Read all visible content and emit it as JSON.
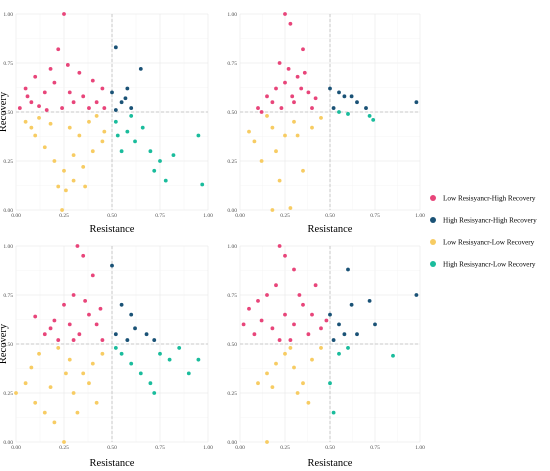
{
  "figure": {
    "legend": {
      "placement": "right",
      "entries": [
        {
          "key": "LH",
          "label": "Low Resisyancr-High Recovery",
          "color": "#e8457a"
        },
        {
          "key": "HH",
          "label": "High Resisyancr-High Recovery",
          "color": "#1a5276"
        },
        {
          "key": "LL",
          "label": "Low Resisyancr-Low Recovery",
          "color": "#f7cc63"
        },
        {
          "key": "HL",
          "label": "High Resisyancr-Low Recovery",
          "color": "#1abc9c"
        }
      ]
    }
  },
  "chart_data": [
    {
      "type": "scatter",
      "panel": "top-left",
      "xlabel": "Resistance",
      "ylabel": "Recovery",
      "xlim": [
        0,
        1
      ],
      "ylim": [
        0,
        1
      ],
      "x_ticks": [
        "0.00",
        "0.25",
        "0.50",
        "0.75",
        "1.00"
      ],
      "y_ticks": [
        "0.00",
        "0.25",
        "0.50",
        "0.75",
        "1.00"
      ],
      "reference_lines": {
        "x": 0.5,
        "y": 0.5
      },
      "grid": true,
      "series": [
        {
          "key": "LH",
          "points": [
            [
              0.25,
              1.0
            ],
            [
              0.22,
              0.82
            ],
            [
              0.18,
              0.72
            ],
            [
              0.1,
              0.68
            ],
            [
              0.05,
              0.62
            ],
            [
              0.02,
              0.52
            ],
            [
              0.08,
              0.55
            ],
            [
              0.15,
              0.6
            ],
            [
              0.2,
              0.65
            ],
            [
              0.28,
              0.6
            ],
            [
              0.33,
              0.7
            ],
            [
              0.4,
              0.66
            ],
            [
              0.45,
              0.62
            ],
            [
              0.3,
              0.55
            ],
            [
              0.38,
              0.52
            ],
            [
              0.12,
              0.53
            ],
            [
              0.24,
              0.52
            ],
            [
              0.35,
              0.58
            ],
            [
              0.42,
              0.55
            ],
            [
              0.06,
              0.58
            ],
            [
              0.16,
              0.51
            ],
            [
              0.46,
              0.52
            ],
            [
              0.27,
              0.74
            ]
          ]
        },
        {
          "key": "HH",
          "points": [
            [
              0.52,
              0.83
            ],
            [
              0.65,
              0.72
            ],
            [
              0.58,
              0.62
            ],
            [
              0.5,
              0.6
            ],
            [
              0.55,
              0.55
            ],
            [
              0.6,
              0.52
            ],
            [
              0.52,
              0.51
            ],
            [
              0.57,
              0.57
            ]
          ]
        },
        {
          "key": "LL",
          "points": [
            [
              0.05,
              0.45
            ],
            [
              0.1,
              0.38
            ],
            [
              0.15,
              0.32
            ],
            [
              0.2,
              0.25
            ],
            [
              0.25,
              0.2
            ],
            [
              0.3,
              0.15
            ],
            [
              0.22,
              0.12
            ],
            [
              0.35,
              0.22
            ],
            [
              0.4,
              0.3
            ],
            [
              0.45,
              0.35
            ],
            [
              0.12,
              0.47
            ],
            [
              0.28,
              0.42
            ],
            [
              0.33,
              0.38
            ],
            [
              0.38,
              0.45
            ],
            [
              0.18,
              0.44
            ],
            [
              0.42,
              0.48
            ],
            [
              0.26,
              0.1
            ],
            [
              0.24,
              0.0
            ],
            [
              0.3,
              0.28
            ],
            [
              0.08,
              0.42
            ],
            [
              0.36,
              0.12
            ],
            [
              0.46,
              0.4
            ]
          ]
        },
        {
          "key": "HL",
          "points": [
            [
              0.52,
              0.45
            ],
            [
              0.58,
              0.4
            ],
            [
              0.62,
              0.35
            ],
            [
              0.7,
              0.3
            ],
            [
              0.75,
              0.25
            ],
            [
              0.78,
              0.15
            ],
            [
              0.82,
              0.28
            ],
            [
              0.95,
              0.38
            ],
            [
              0.97,
              0.13
            ],
            [
              0.55,
              0.3
            ],
            [
              0.6,
              0.48
            ],
            [
              0.66,
              0.42
            ],
            [
              0.72,
              0.2
            ],
            [
              0.53,
              0.38
            ]
          ]
        }
      ]
    },
    {
      "type": "scatter",
      "panel": "top-right",
      "xlabel": "Resistance",
      "ylabel": "",
      "xlim": [
        0,
        1
      ],
      "ylim": [
        0,
        1
      ],
      "x_ticks": [
        "0.00",
        "0.25",
        "0.50",
        "0.75",
        "1.00"
      ],
      "y_ticks": [
        "0.00",
        "0.25",
        "0.50",
        "0.75",
        "1.00"
      ],
      "reference_lines": {
        "x": 0.5,
        "y": 0.5
      },
      "grid": true,
      "series": [
        {
          "key": "LH",
          "points": [
            [
              0.25,
              1.0
            ],
            [
              0.28,
              0.95
            ],
            [
              0.35,
              0.82
            ],
            [
              0.22,
              0.75
            ],
            [
              0.27,
              0.72
            ],
            [
              0.32,
              0.68
            ],
            [
              0.2,
              0.62
            ],
            [
              0.15,
              0.58
            ],
            [
              0.1,
              0.52
            ],
            [
              0.3,
              0.55
            ],
            [
              0.38,
              0.6
            ],
            [
              0.25,
              0.65
            ],
            [
              0.4,
              0.52
            ],
            [
              0.18,
              0.55
            ],
            [
              0.34,
              0.62
            ],
            [
              0.29,
              0.58
            ],
            [
              0.23,
              0.52
            ],
            [
              0.42,
              0.57
            ],
            [
              0.12,
              0.5
            ],
            [
              0.36,
              0.7
            ]
          ]
        },
        {
          "key": "HH",
          "points": [
            [
              0.5,
              0.62
            ],
            [
              0.55,
              0.6
            ],
            [
              0.58,
              0.58
            ],
            [
              0.62,
              0.58
            ],
            [
              0.65,
              0.55
            ],
            [
              0.52,
              0.52
            ],
            [
              0.7,
              0.52
            ],
            [
              0.98,
              0.55
            ]
          ]
        },
        {
          "key": "LL",
          "points": [
            [
              0.05,
              0.4
            ],
            [
              0.08,
              0.35
            ],
            [
              0.12,
              0.25
            ],
            [
              0.18,
              0.42
            ],
            [
              0.2,
              0.3
            ],
            [
              0.25,
              0.38
            ],
            [
              0.3,
              0.45
            ],
            [
              0.35,
              0.2
            ],
            [
              0.22,
              0.15
            ],
            [
              0.28,
              0.01
            ],
            [
              0.18,
              0.0
            ],
            [
              0.4,
              0.42
            ],
            [
              0.15,
              0.48
            ],
            [
              0.32,
              0.38
            ],
            [
              0.45,
              0.47
            ]
          ]
        },
        {
          "key": "HL",
          "points": [
            [
              0.55,
              0.5
            ],
            [
              0.72,
              0.48
            ],
            [
              0.74,
              0.46
            ],
            [
              0.6,
              0.49
            ]
          ]
        }
      ]
    },
    {
      "type": "scatter",
      "panel": "bottom-left",
      "xlabel": "Resistance",
      "ylabel": "Recovery",
      "xlim": [
        0,
        1
      ],
      "ylim": [
        0,
        1
      ],
      "x_ticks": [
        "0.00",
        "0.25",
        "0.50",
        "0.75",
        "1.00"
      ],
      "y_ticks": [
        "0.00",
        "0.25",
        "0.50",
        "0.75",
        "1.00"
      ],
      "reference_lines": {
        "x": 0.5,
        "y": 0.5
      },
      "grid": true,
      "series": [
        {
          "key": "LH",
          "points": [
            [
              0.32,
              1.0
            ],
            [
              0.35,
              0.95
            ],
            [
              0.4,
              0.85
            ],
            [
              0.3,
              0.75
            ],
            [
              0.25,
              0.7
            ],
            [
              0.2,
              0.62
            ],
            [
              0.1,
              0.64
            ],
            [
              0.15,
              0.55
            ],
            [
              0.28,
              0.6
            ],
            [
              0.33,
              0.55
            ],
            [
              0.38,
              0.65
            ],
            [
              0.42,
              0.6
            ],
            [
              0.45,
              0.52
            ],
            [
              0.22,
              0.52
            ],
            [
              0.36,
              0.72
            ],
            [
              0.18,
              0.58
            ],
            [
              0.3,
              0.52
            ],
            [
              0.44,
              0.68
            ]
          ]
        },
        {
          "key": "HH",
          "points": [
            [
              0.5,
              0.9
            ],
            [
              0.55,
              0.7
            ],
            [
              0.6,
              0.65
            ],
            [
              0.62,
              0.58
            ],
            [
              0.68,
              0.55
            ],
            [
              0.72,
              0.52
            ],
            [
              0.52,
              0.55
            ],
            [
              0.58,
              0.52
            ]
          ]
        },
        {
          "key": "LL",
          "points": [
            [
              0.0,
              0.25
            ],
            [
              0.05,
              0.3
            ],
            [
              0.1,
              0.2
            ],
            [
              0.15,
              0.15
            ],
            [
              0.2,
              0.1
            ],
            [
              0.25,
              0.0
            ],
            [
              0.3,
              0.25
            ],
            [
              0.35,
              0.35
            ],
            [
              0.4,
              0.4
            ],
            [
              0.45,
              0.45
            ],
            [
              0.08,
              0.38
            ],
            [
              0.18,
              0.28
            ],
            [
              0.28,
              0.42
            ],
            [
              0.22,
              0.48
            ],
            [
              0.38,
              0.3
            ],
            [
              0.32,
              0.15
            ],
            [
              0.12,
              0.45
            ],
            [
              0.42,
              0.2
            ],
            [
              0.26,
              0.35
            ]
          ]
        },
        {
          "key": "HL",
          "points": [
            [
              0.52,
              0.48
            ],
            [
              0.55,
              0.45
            ],
            [
              0.6,
              0.4
            ],
            [
              0.65,
              0.35
            ],
            [
              0.7,
              0.3
            ],
            [
              0.75,
              0.45
            ],
            [
              0.8,
              0.42
            ],
            [
              0.85,
              0.48
            ],
            [
              0.9,
              0.35
            ],
            [
              0.95,
              0.42
            ],
            [
              0.72,
              0.25
            ]
          ]
        }
      ]
    },
    {
      "type": "scatter",
      "panel": "bottom-right",
      "xlabel": "Resistance",
      "ylabel": "",
      "xlim": [
        0,
        1
      ],
      "ylim": [
        0,
        1
      ],
      "x_ticks": [
        "0.00",
        "0.25",
        "0.50",
        "0.75",
        "1.00"
      ],
      "y_ticks": [
        "0.00",
        "0.25",
        "0.50",
        "0.75",
        "1.00"
      ],
      "reference_lines": {
        "x": 0.5,
        "y": 0.5
      },
      "grid": true,
      "series": [
        {
          "key": "LH",
          "points": [
            [
              0.22,
              1.0
            ],
            [
              0.25,
              0.95
            ],
            [
              0.3,
              0.88
            ],
            [
              0.2,
              0.8
            ],
            [
              0.15,
              0.75
            ],
            [
              0.1,
              0.72
            ],
            [
              0.05,
              0.68
            ],
            [
              0.02,
              0.6
            ],
            [
              0.08,
              0.55
            ],
            [
              0.12,
              0.62
            ],
            [
              0.18,
              0.58
            ],
            [
              0.25,
              0.65
            ],
            [
              0.3,
              0.6
            ],
            [
              0.35,
              0.7
            ],
            [
              0.4,
              0.65
            ],
            [
              0.45,
              0.58
            ],
            [
              0.28,
              0.52
            ],
            [
              0.38,
              0.55
            ],
            [
              0.33,
              0.75
            ],
            [
              0.42,
              0.8
            ],
            [
              0.22,
              0.52
            ],
            [
              0.48,
              0.62
            ]
          ]
        },
        {
          "key": "HH",
          "points": [
            [
              0.5,
              0.65
            ],
            [
              0.55,
              0.6
            ],
            [
              0.6,
              0.88
            ],
            [
              0.62,
              0.7
            ],
            [
              0.65,
              0.55
            ],
            [
              0.72,
              0.72
            ],
            [
              0.75,
              0.6
            ],
            [
              0.98,
              0.75
            ],
            [
              0.58,
              0.55
            ],
            [
              0.52,
              0.52
            ]
          ]
        },
        {
          "key": "LL",
          "points": [
            [
              0.1,
              0.3
            ],
            [
              0.15,
              0.35
            ],
            [
              0.2,
              0.4
            ],
            [
              0.25,
              0.45
            ],
            [
              0.3,
              0.38
            ],
            [
              0.35,
              0.3
            ],
            [
              0.4,
              0.42
            ],
            [
              0.45,
              0.48
            ],
            [
              0.15,
              0.0
            ],
            [
              0.32,
              0.25
            ],
            [
              0.38,
              0.2
            ],
            [
              0.28,
              0.48
            ],
            [
              0.18,
              0.28
            ]
          ]
        },
        {
          "key": "HL",
          "points": [
            [
              0.5,
              0.3
            ],
            [
              0.52,
              0.15
            ],
            [
              0.55,
              0.45
            ],
            [
              0.85,
              0.44
            ],
            [
              0.6,
              0.48
            ]
          ]
        }
      ]
    }
  ]
}
